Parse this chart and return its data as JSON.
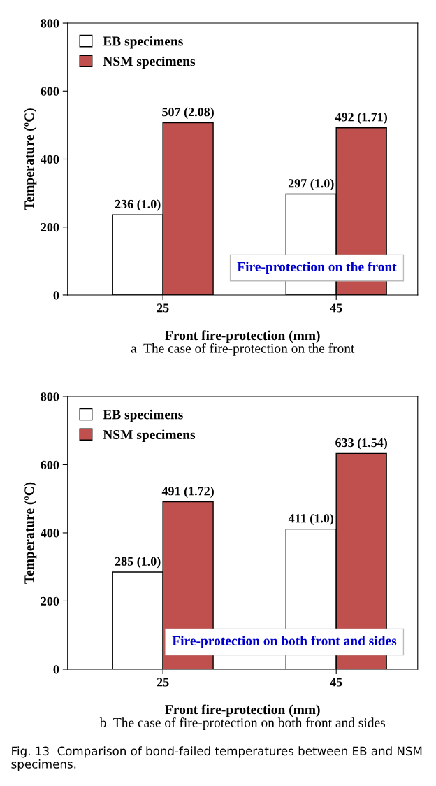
{
  "chart_data": [
    {
      "type": "bar",
      "categories": [
        "25",
        "45"
      ],
      "xlabel": "Front fire-protection (mm)",
      "ylabel": "Temperature (ºC)",
      "ylim": [
        0,
        800
      ],
      "yticks": [
        0,
        200,
        400,
        600,
        800
      ],
      "grid": false,
      "legend": "top left",
      "series": [
        {
          "name": "EB specimens",
          "color": "#ffffff",
          "values": [
            236,
            297
          ],
          "value_labels": [
            "236 (1.0)",
            "297 (1.0)"
          ]
        },
        {
          "name": "NSM specimens",
          "color": "#c0504d",
          "values": [
            507,
            492
          ],
          "value_labels": [
            "507 (2.08)",
            "492 (1.71)"
          ]
        }
      ],
      "annotations": [
        "Fire-protection on the front",
        "a  The case of fire-protection on the front"
      ]
    },
    {
      "type": "bar",
      "categories": [
        "25",
        "45"
      ],
      "xlabel": "Front fire-protection (mm)",
      "ylabel": "Temperature (ºC)",
      "ylim": [
        0,
        800
      ],
      "yticks": [
        0,
        200,
        400,
        600,
        800
      ],
      "grid": false,
      "legend": "top left",
      "series": [
        {
          "name": "EB specimens",
          "color": "#ffffff",
          "values": [
            285,
            411
          ],
          "value_labels": [
            "285 (1.0)",
            "411 (1.0)"
          ]
        },
        {
          "name": "NSM specimens",
          "color": "#c0504d",
          "values": [
            491,
            633
          ],
          "value_labels": [
            "491 (1.72)",
            "633 (1.54)"
          ]
        }
      ],
      "annotations": [
        "Fire-protection on both front and sides",
        "b  The case of fire-protection on both front and sides",
        "Fig. 13  Comparison of bond-failed temperatures between EB and NSM specimens."
      ]
    }
  ]
}
